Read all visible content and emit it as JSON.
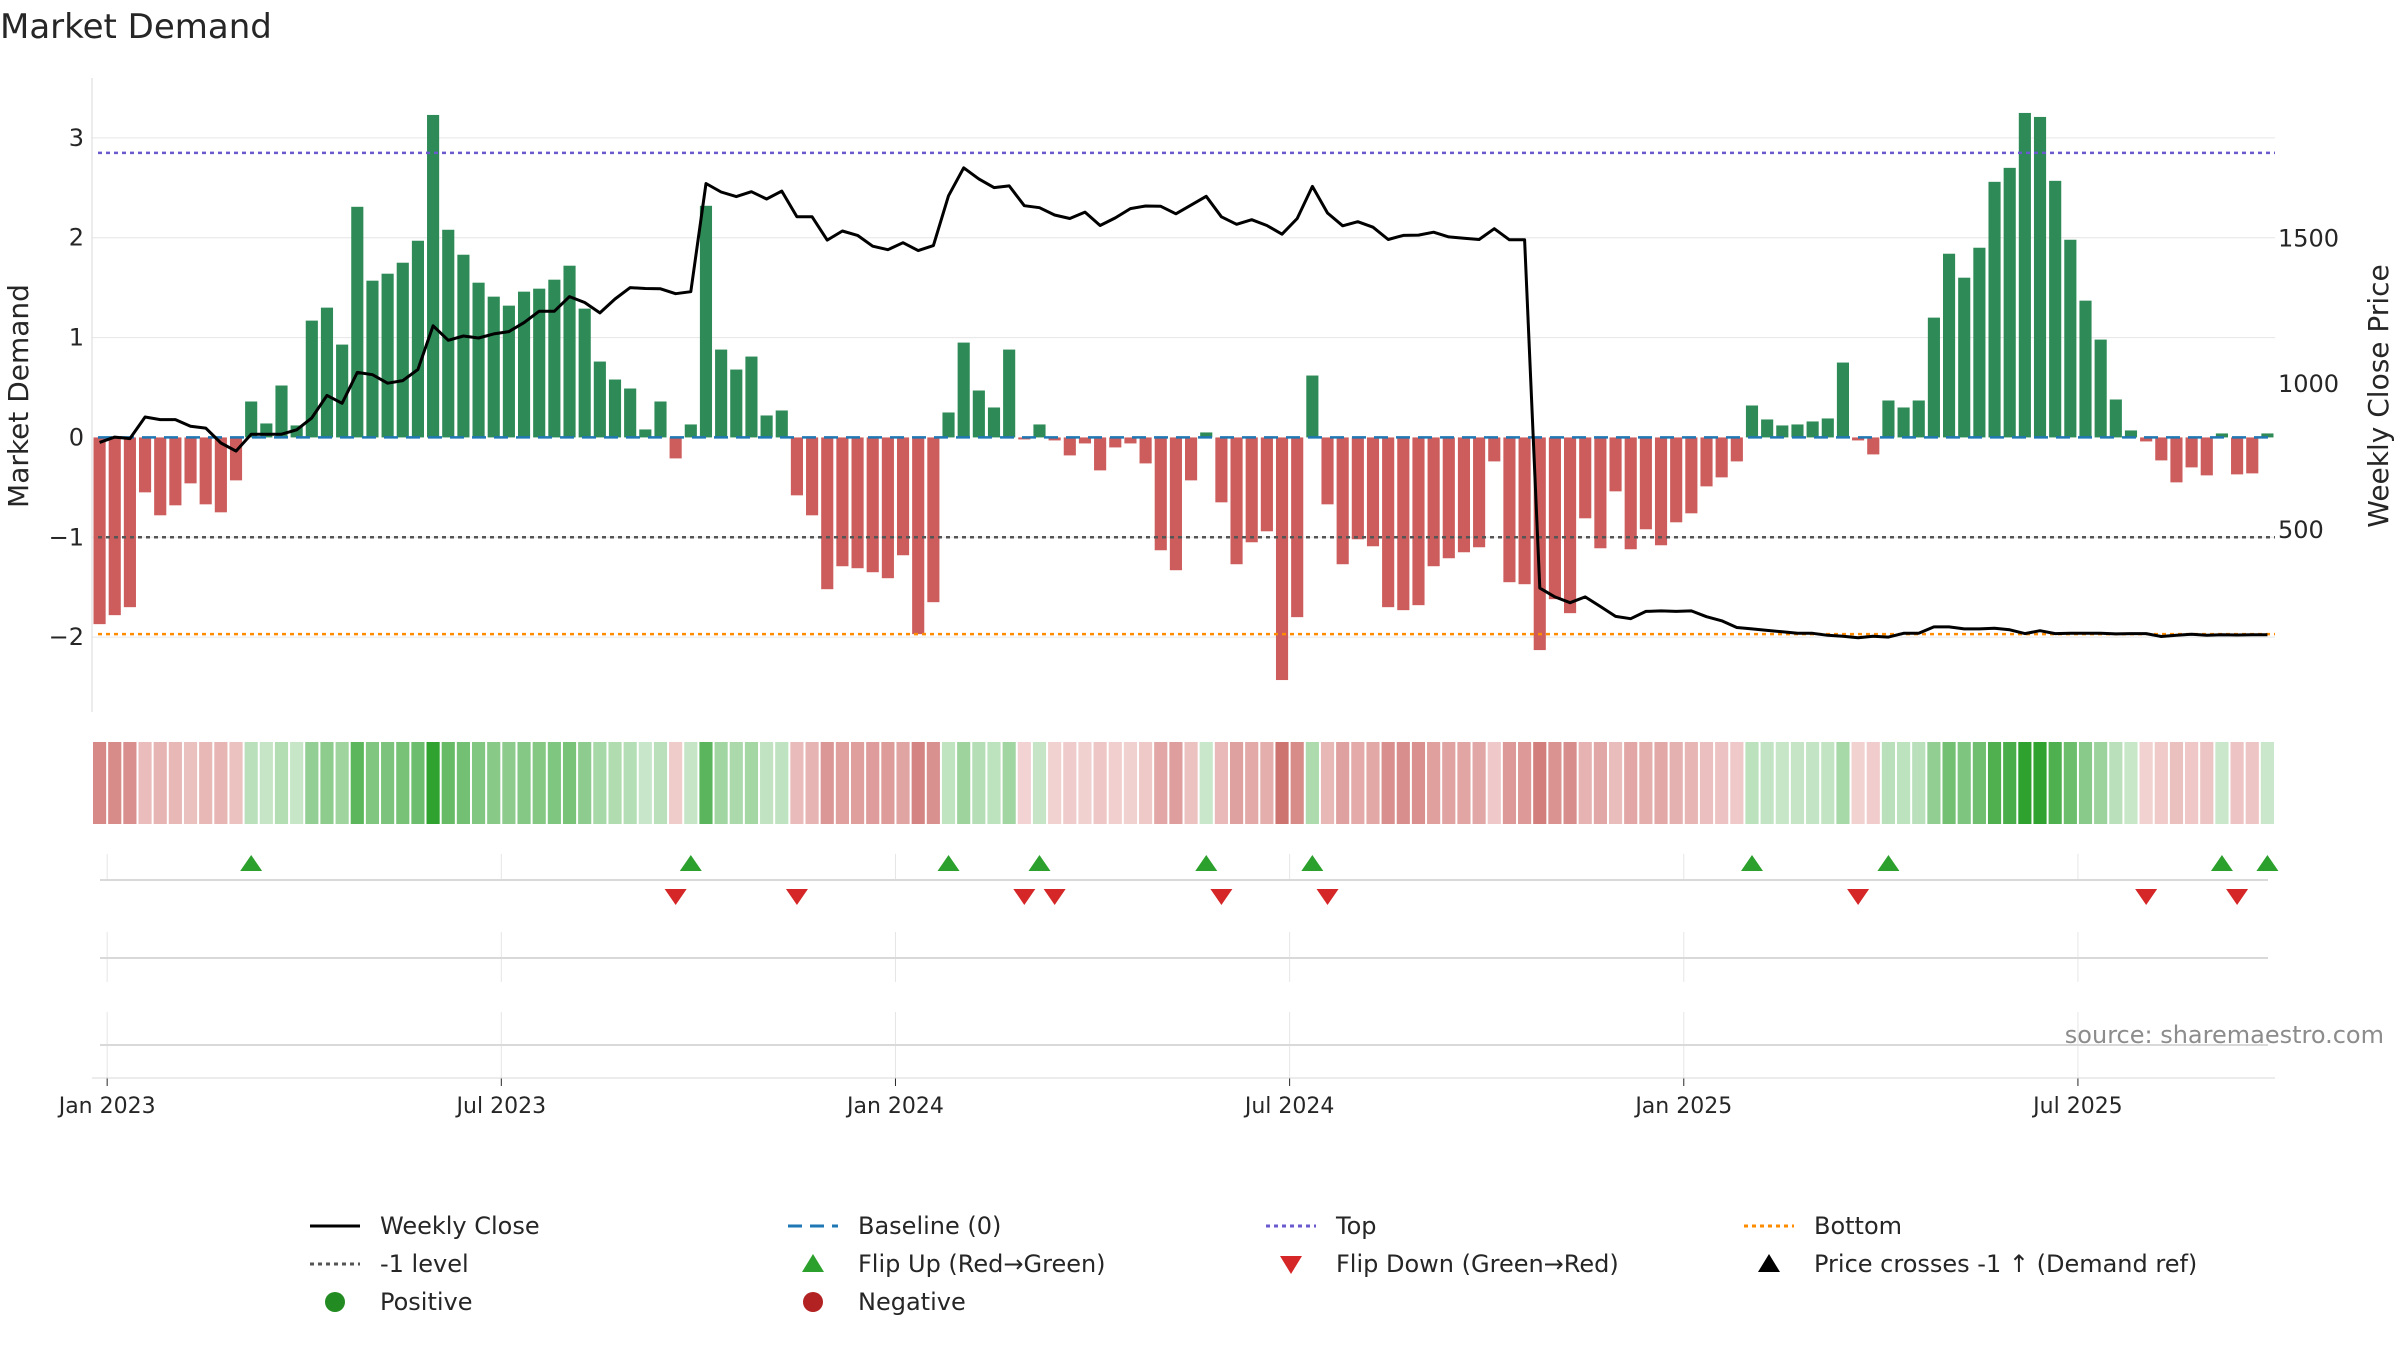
{
  "chart_data": {
    "type": "bar",
    "title": "Market Demand",
    "ylabel_left": "Market Demand",
    "ylabel_right": "Weekly Close Price",
    "source": "source: sharemaestro.com",
    "y_left_ticks": [
      3,
      2,
      1,
      0,
      -1,
      -2
    ],
    "y_left_tick_labels": [
      "3",
      "2",
      "1",
      "0",
      "−1",
      "−2"
    ],
    "y_left_range": [
      -2.75,
      3.6
    ],
    "y_right_ticks": [
      1500,
      1000,
      500
    ],
    "y_right_tick_labels": [
      "1500",
      "1000",
      "500"
    ],
    "y_right_range": [
      -125,
      2050
    ],
    "top_level": 2.85,
    "minus1_level": -1,
    "bottom_level": -1.97,
    "x_tick_labels": [
      "Jan 2023",
      "Jul 2023",
      "Jan 2024",
      "Jul 2024",
      "Jan 2025",
      "Jul 2025"
    ],
    "x_tick_index": [
      0.5,
      26.5,
      52.5,
      78.5,
      104.5,
      130.5
    ],
    "demand": [
      -1.87,
      -1.78,
      -1.7,
      -0.55,
      -0.78,
      -0.68,
      -0.46,
      -0.67,
      -0.75,
      -0.43,
      0.36,
      0.14,
      0.52,
      0.12,
      1.17,
      1.3,
      0.93,
      2.31,
      1.57,
      1.64,
      1.75,
      1.97,
      3.23,
      2.08,
      1.83,
      1.55,
      1.41,
      1.32,
      1.46,
      1.49,
      1.58,
      1.72,
      1.29,
      0.76,
      0.58,
      0.49,
      0.08,
      0.36,
      -0.21,
      0.13,
      2.32,
      0.88,
      0.68,
      0.81,
      0.22,
      0.27,
      -0.58,
      -0.78,
      -1.52,
      -1.29,
      -1.31,
      -1.35,
      -1.41,
      -1.18,
      -1.97,
      -1.65,
      0.25,
      0.95,
      0.47,
      0.3,
      0.88,
      -0.02,
      0.13,
      -0.03,
      -0.18,
      -0.06,
      -0.33,
      -0.1,
      -0.06,
      -0.26,
      -1.13,
      -1.33,
      -0.43,
      0.05,
      -0.65,
      -1.27,
      -1.05,
      -0.94,
      -2.43,
      -1.8,
      0.62,
      -0.67,
      -1.27,
      -1.02,
      -1.09,
      -1.7,
      -1.73,
      -1.68,
      -1.29,
      -1.21,
      -1.15,
      -1.1,
      -0.24,
      -1.45,
      -1.47,
      -2.13,
      -1.62,
      -1.76,
      -0.81,
      -1.11,
      -0.54,
      -1.12,
      -0.92,
      -1.08,
      -0.85,
      -0.76,
      -0.49,
      -0.4,
      -0.24,
      0.32,
      0.18,
      0.12,
      0.13,
      0.16,
      0.19,
      0.75,
      -0.03,
      -0.17,
      0.37,
      0.3,
      0.37,
      1.2,
      1.84,
      1.6,
      1.9,
      2.56,
      2.7,
      3.25,
      3.21,
      2.57,
      1.98,
      1.37,
      0.98,
      0.38,
      0.07,
      -0.04,
      -0.23,
      -0.45,
      -0.3,
      -0.38,
      0.04,
      -0.37,
      -0.36,
      0.04
    ],
    "close": [
      800,
      818,
      813,
      887,
      878,
      878,
      855,
      849,
      798,
      770,
      828,
      828,
      828,
      843,
      884,
      961,
      934,
      1040,
      1032,
      1003,
      1012,
      1050,
      1200,
      1150,
      1165,
      1158,
      1172,
      1180,
      1211,
      1250,
      1250,
      1300,
      1280,
      1244,
      1292,
      1331,
      1328,
      1327,
      1310,
      1317,
      1688,
      1659,
      1643,
      1660,
      1635,
      1662,
      1574,
      1574,
      1494,
      1525,
      1510,
      1473,
      1461,
      1485,
      1458,
      1475,
      1646,
      1742,
      1704,
      1674,
      1680,
      1612,
      1605,
      1580,
      1568,
      1590,
      1544,
      1570,
      1602,
      1611,
      1610,
      1584,
      1614,
      1644,
      1574,
      1548,
      1564,
      1544,
      1514,
      1568,
      1678,
      1587,
      1543,
      1557,
      1538,
      1496,
      1510,
      1511,
      1521,
      1505,
      1500,
      1496,
      1533,
      1495,
      1495,
      300,
      270,
      250,
      270,
      237,
      203,
      195,
      220,
      222,
      220,
      222,
      202,
      188,
      165,
      160,
      155,
      150,
      145,
      145,
      138,
      135,
      130,
      135,
      132,
      145,
      145,
      167,
      167,
      160,
      160,
      162,
      157,
      144,
      154,
      144,
      145,
      145,
      145,
      143,
      144,
      144,
      134,
      138,
      142,
      138,
      140,
      139,
      140,
      140
    ]
  },
  "legend": {
    "weekly_close": "Weekly Close",
    "baseline": "Baseline (0)",
    "top": "Top",
    "bottom": "Bottom",
    "minus1_level": "-1 level",
    "flip_up": "Flip Up (Red→Green)",
    "flip_down": "Flip Down (Green→Red)",
    "price_cross": "Price crosses -1 ↑ (Demand ref)",
    "positive": "Positive",
    "negative": "Negative"
  },
  "colors": {
    "positive_bar": "#2e8b57",
    "negative_bar": "#cd5c5c",
    "close_line": "#000000",
    "baseline": "#1f77b4",
    "top_line": "#6a5acd",
    "minus1_line": "#555555",
    "bottom_line": "#ff8c00",
    "flip_up": "#2ca02c",
    "flip_down": "#d62728",
    "positive_dot": "#228b22",
    "negative_dot": "#b22222"
  }
}
